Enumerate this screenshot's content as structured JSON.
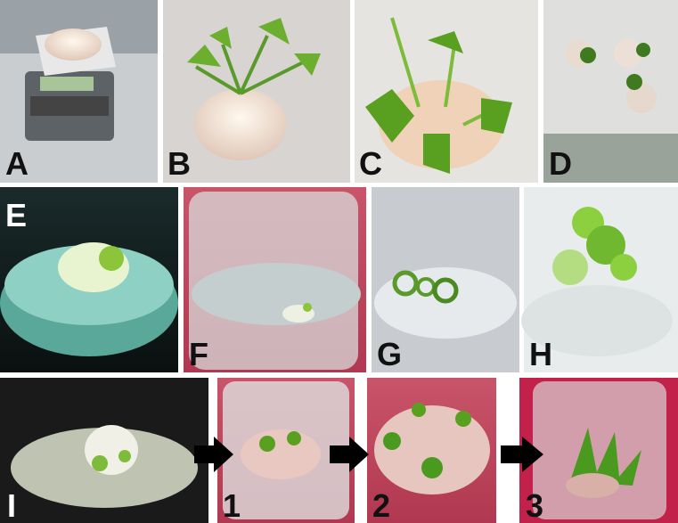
{
  "panels": [
    {
      "label": "A"
    },
    {
      "label": "B"
    },
    {
      "label": "C"
    },
    {
      "label": "D"
    },
    {
      "label": "E"
    },
    {
      "label": "F"
    },
    {
      "label": "G"
    },
    {
      "label": "H"
    },
    {
      "label": "I"
    },
    {
      "label": "1"
    },
    {
      "label": "2"
    },
    {
      "label": "3"
    }
  ]
}
